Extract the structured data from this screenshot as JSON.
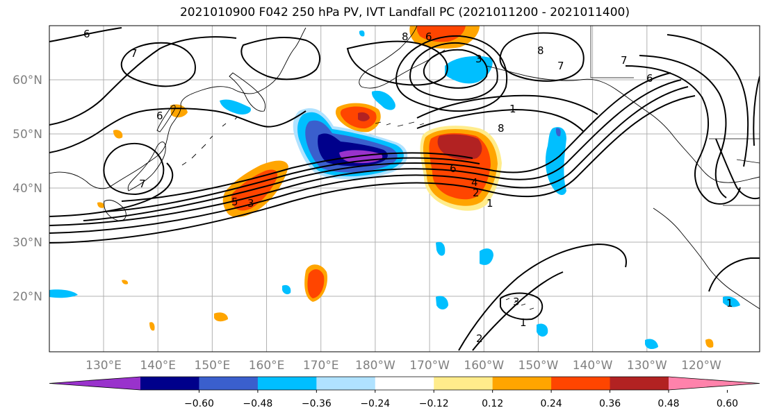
{
  "title": "2021010900 F042 250 hPa PV, IVT Landfall PC (2021011200 - 2021011400)",
  "lat_labels": [
    {
      "text": "60°N",
      "lat": 60
    },
    {
      "text": "50°N",
      "lat": 50
    },
    {
      "text": "40°N",
      "lat": 40
    },
    {
      "text": "30°N",
      "lat": 30
    },
    {
      "text": "20°N",
      "lat": 20
    }
  ],
  "lon_labels": [
    {
      "text": "130°E",
      "lon": 130
    },
    {
      "text": "140°E",
      "lon": 140
    },
    {
      "text": "150°E",
      "lon": 150
    },
    {
      "text": "160°E",
      "lon": 160
    },
    {
      "text": "170°E",
      "lon": 170
    },
    {
      "text": "180°W",
      "lon": 180
    },
    {
      "text": "170°W",
      "lon": 190
    },
    {
      "text": "160°W",
      "lon": 200
    },
    {
      "text": "150°W",
      "lon": 210
    },
    {
      "text": "140°W",
      "lon": 220
    },
    {
      "text": "130°W",
      "lon": 230
    },
    {
      "text": "120°W",
      "lon": 240
    }
  ],
  "colorbar": {
    "colors": [
      "#9932cc",
      "#00008b",
      "#3a5fcd",
      "#00bfff",
      "#b0e2ff",
      "#ffffff",
      "#ffec8b",
      "#ffa500",
      "#ff4500",
      "#b22222",
      "#ff82ab"
    ],
    "labels": [
      "−0.60",
      "−0.48",
      "−0.36",
      "−0.24",
      "−0.12",
      "0.12",
      "0.24",
      "0.36",
      "0.48",
      "0.60"
    ]
  },
  "contour_labels": [
    "6",
    "7",
    "6",
    "8",
    "6",
    "3",
    "8",
    "7",
    "6",
    "7",
    "1",
    "8",
    "6",
    "4",
    "2",
    "1",
    "7",
    "5",
    "3",
    "3",
    "1",
    "2",
    "1"
  ]
}
